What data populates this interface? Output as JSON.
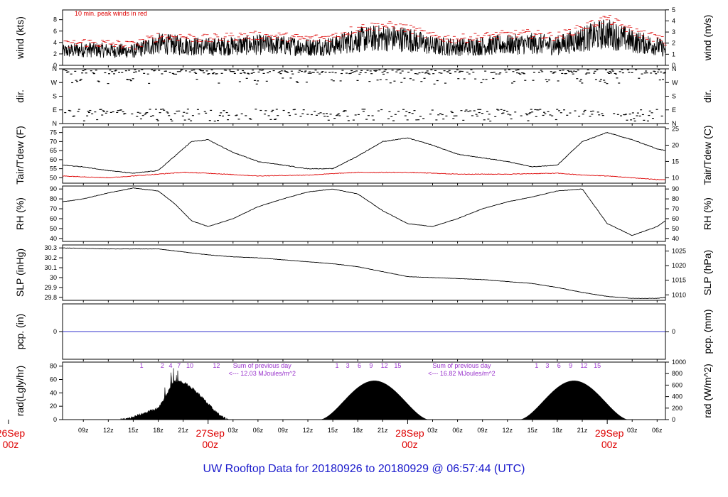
{
  "title": "UW Rooftop Data for 20180926  to  20180929 @ 06:57:44  (UTC)",
  "colors": {
    "black": "#000000",
    "red": "#dd0000",
    "blue": "#1a1acc",
    "purple": "#9933cc",
    "pcp_line": "#3333cc"
  },
  "x_axis": {
    "hour_ticks": [
      "09z",
      "12z",
      "15z",
      "18z",
      "21z",
      "03z",
      "06z",
      "09z",
      "12z",
      "15z",
      "18z",
      "21z",
      "03z",
      "06z",
      "09z",
      "12z",
      "15z",
      "18z",
      "21z",
      "03z",
      "06z"
    ],
    "hour_tick_values": [
      9,
      12,
      15,
      18,
      21,
      27,
      30,
      33,
      36,
      39,
      42,
      45,
      51,
      54,
      57,
      60,
      63,
      66,
      69,
      75,
      78
    ],
    "date_labels": [
      {
        "day": "26Sep",
        "hour": "00z",
        "x": 0
      },
      {
        "day": "27Sep",
        "hour": "00z",
        "x": 24
      },
      {
        "day": "28Sep",
        "hour": "00z",
        "x": 48
      },
      {
        "day": "29Sep",
        "hour": "00z",
        "x": 72
      }
    ],
    "xlim": [
      6.5,
      79
    ]
  },
  "chart_data": [
    {
      "type": "line",
      "panel": "wind",
      "ylabel_left": "wind (kts)",
      "ylabel_right": "wind (m/s)",
      "ylim": [
        0,
        9.7
      ],
      "yticks_left": [
        0,
        2,
        4,
        6,
        8
      ],
      "yticks_right": [
        0,
        1,
        2,
        3,
        4,
        5
      ],
      "annotation": "10 min. peak winds in red",
      "series": [
        {
          "color": "black",
          "x": [
            6.5,
            9,
            12,
            15,
            18,
            21,
            24,
            27,
            30,
            33,
            36,
            39,
            42,
            45,
            48,
            51,
            54,
            57,
            60,
            63,
            66,
            69,
            72,
            75,
            78,
            79
          ],
          "values": [
            2.4,
            2.8,
            2.6,
            2.5,
            3.8,
            3.5,
            3.2,
            3.4,
            3.6,
            3.5,
            3.2,
            3.4,
            4.5,
            4.8,
            4.6,
            3.4,
            3.2,
            3.4,
            3.6,
            3.8,
            3.5,
            4.6,
            5.6,
            4.2,
            3.4,
            2.8
          ]
        },
        {
          "color": "red",
          "x": [
            6.5,
            9,
            12,
            15,
            18,
            21,
            24,
            27,
            30,
            33,
            36,
            39,
            42,
            45,
            48,
            51,
            54,
            57,
            60,
            63,
            66,
            69,
            72,
            75,
            78,
            79
          ],
          "values": [
            3.5,
            4.0,
            3.8,
            3.5,
            5.0,
            5.0,
            4.6,
            5.0,
            5.2,
            5.0,
            4.6,
            5.0,
            6.5,
            7.0,
            6.5,
            5.0,
            4.6,
            5.0,
            5.4,
            5.5,
            5.0,
            6.6,
            8.2,
            6.0,
            4.8,
            4.0
          ]
        }
      ]
    },
    {
      "type": "scatter",
      "panel": "dir",
      "ylabel_left": "dir.",
      "ylabel_right": "dir.",
      "ylim": [
        0,
        360
      ],
      "yticks_left_labels": [
        "N",
        "E",
        "S",
        "W",
        "N"
      ],
      "yticks_right_labels": [
        "N",
        "E",
        "S",
        "W",
        "N"
      ],
      "yticks_values": [
        0,
        90,
        180,
        270,
        360
      ]
    },
    {
      "type": "line",
      "panel": "temp",
      "ylabel_left": "Tair/Tdew (F)",
      "ylabel_right": "Tair/Tdew (C)",
      "ylim": [
        47,
        78
      ],
      "yticks_left": [
        50,
        55,
        60,
        65,
        70,
        75
      ],
      "yticks_right": [
        10,
        15,
        20,
        25
      ],
      "series": [
        {
          "name": "Tair",
          "color": "black",
          "x": [
            6.5,
            9,
            12,
            15,
            18,
            20,
            22,
            24,
            27,
            30,
            33,
            36,
            39,
            42,
            45,
            48,
            51,
            54,
            57,
            60,
            63,
            66,
            69,
            72,
            75,
            78,
            79
          ],
          "values": [
            57,
            56,
            54,
            52.5,
            54,
            62,
            70,
            71,
            64,
            59,
            57,
            55,
            55,
            62,
            70,
            72,
            68,
            63,
            61,
            59,
            56,
            57,
            70,
            75,
            71,
            66,
            65
          ]
        },
        {
          "name": "Tdew",
          "color": "red",
          "x": [
            6.5,
            12,
            15,
            18,
            21,
            24,
            30,
            36,
            42,
            48,
            54,
            60,
            66,
            69,
            72,
            75,
            78,
            79
          ],
          "values": [
            51,
            50,
            51,
            52,
            53,
            52.5,
            51,
            51.5,
            53,
            53,
            52,
            52,
            52.5,
            51.5,
            51,
            50,
            49,
            49
          ]
        }
      ]
    },
    {
      "type": "line",
      "panel": "rh",
      "ylabel_left": "RH (%)",
      "ylabel_right": "RH (%)",
      "ylim": [
        37,
        93
      ],
      "yticks_left": [
        40,
        50,
        60,
        70,
        80,
        90
      ],
      "yticks_right": [
        40,
        50,
        60,
        70,
        80,
        90
      ],
      "series": [
        {
          "color": "black",
          "x": [
            6.5,
            9,
            12,
            15,
            18,
            20,
            22,
            24,
            27,
            30,
            33,
            36,
            39,
            42,
            45,
            48,
            51,
            54,
            57,
            60,
            63,
            66,
            69,
            72,
            75,
            78,
            79
          ],
          "values": [
            77,
            80,
            86,
            91,
            88,
            75,
            58,
            52,
            60,
            72,
            80,
            87,
            90,
            85,
            68,
            55,
            52,
            60,
            70,
            77,
            82,
            88,
            90,
            55,
            43,
            52,
            58
          ]
        }
      ]
    },
    {
      "type": "line",
      "panel": "slp",
      "ylabel_left": "SLP (inHg)",
      "ylabel_right": "SLP (hPa)",
      "ylim": [
        29.77,
        30.33
      ],
      "yticks_left": [
        29.8,
        29.9,
        30.0,
        30.1,
        30.2,
        30.3
      ],
      "yticks_right": [
        1010,
        1015,
        1020,
        1025
      ],
      "series": [
        {
          "color": "black",
          "x": [
            6.5,
            12,
            18,
            21,
            24,
            27,
            30,
            33,
            36,
            39,
            42,
            45,
            48,
            51,
            54,
            57,
            60,
            63,
            66,
            69,
            72,
            75,
            78,
            79
          ],
          "values": [
            30.3,
            30.29,
            30.29,
            30.26,
            30.23,
            30.21,
            30.2,
            30.18,
            30.16,
            30.14,
            30.11,
            30.06,
            30.01,
            30.0,
            29.99,
            29.98,
            29.96,
            29.94,
            29.9,
            29.85,
            29.81,
            29.79,
            29.79,
            29.8
          ]
        }
      ]
    },
    {
      "type": "line",
      "panel": "pcp",
      "ylabel_left": "pcp. (in)",
      "ylabel_right": "pcp. (mm)",
      "ylim": [
        -1,
        1
      ],
      "yticks_left": [
        0
      ],
      "yticks_right": [
        0
      ],
      "series": [
        {
          "color": "blue",
          "x": [
            6.5,
            79
          ],
          "values": [
            0,
            0
          ]
        }
      ]
    },
    {
      "type": "area",
      "panel": "rad",
      "ylabel_left": "rad(Lgly/hr)",
      "ylabel_right": "rad (W/m^2)",
      "ylim": [
        0,
        86
      ],
      "yticks_left": [
        0,
        20,
        40,
        60,
        80
      ],
      "yticks_right": [
        0,
        200,
        400,
        600,
        800,
        1000
      ],
      "days": [
        {
          "start": 13.5,
          "peak": 20,
          "end": 26.5,
          "max": 58
        },
        {
          "start": 37.5,
          "peak": 44,
          "end": 50.5,
          "max": 58
        },
        {
          "start": 61.5,
          "peak": 68,
          "end": 74.5,
          "max": 58
        }
      ],
      "hour_markers": [
        {
          "labels": [
            "1",
            "2",
            "4",
            "7",
            "10",
            "12"
          ],
          "x": [
            16,
            18.5,
            19.5,
            20.5,
            21.8,
            25
          ]
        },
        {
          "labels": [
            "1",
            "3",
            "6",
            "9",
            "12",
            "15"
          ],
          "x": [
            39.5,
            40.8,
            42.2,
            43.6,
            45.2,
            46.8
          ]
        },
        {
          "labels": [
            "1",
            "3",
            "6",
            "9",
            "12",
            "15"
          ],
          "x": [
            63.5,
            64.8,
            66.2,
            67.6,
            69.2,
            70.8
          ]
        }
      ],
      "annotations": [
        {
          "line1": "Sum of previous day",
          "line2": "<--- 12.03 MJoules/m^2"
        },
        {
          "line1": "Sum of previous day",
          "line2": "<--- 16.82 MJoules/m^2"
        }
      ]
    }
  ]
}
